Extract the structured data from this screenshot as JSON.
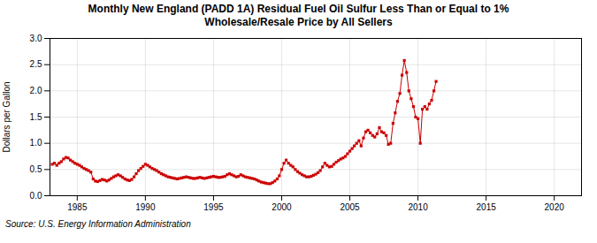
{
  "chart_data": {
    "type": "line",
    "title": "Monthly New England (PADD 1A) Residual Fuel Oil Sulfur Less Than or Equal to 1%\nWholesale/Resale Price by All Sellers",
    "ylabel": "Dollars per Gallon",
    "source": "Source: U.S. Energy Information Administration",
    "color": "#cc0000",
    "marker": "square",
    "grid": true,
    "xlim": [
      1983,
      2022
    ],
    "ylim": [
      0.0,
      3.0
    ],
    "xticks": [
      1985,
      1990,
      1995,
      2000,
      2005,
      2010,
      2015,
      2020
    ],
    "yticks": [
      {
        "value": 0.0,
        "label": "0.0"
      },
      0.5,
      {
        "value": 1.0,
        "label": "1.0"
      },
      1.5,
      {
        "value": 2.0,
        "label": "2.0"
      },
      2.5,
      {
        "value": 3.0,
        "label": "3.0"
      }
    ],
    "x": [
      1983.17,
      1983.33,
      1983.5,
      1983.67,
      1983.83,
      1984.0,
      1984.17,
      1984.33,
      1984.5,
      1984.67,
      1984.83,
      1985.0,
      1985.17,
      1985.33,
      1985.5,
      1985.67,
      1985.83,
      1986.0,
      1986.17,
      1986.33,
      1986.5,
      1986.67,
      1986.83,
      1987.0,
      1987.17,
      1987.33,
      1987.5,
      1987.67,
      1987.83,
      1988.0,
      1988.17,
      1988.33,
      1988.5,
      1988.67,
      1988.83,
      1989.0,
      1989.17,
      1989.33,
      1989.5,
      1989.67,
      1989.83,
      1990.0,
      1990.17,
      1990.33,
      1990.5,
      1990.67,
      1990.83,
      1991.0,
      1991.17,
      1991.33,
      1991.5,
      1991.67,
      1991.83,
      1992.0,
      1992.17,
      1992.33,
      1992.5,
      1992.67,
      1992.83,
      1993.0,
      1993.17,
      1993.33,
      1993.5,
      1993.67,
      1993.83,
      1994.0,
      1994.17,
      1994.33,
      1994.5,
      1994.67,
      1994.83,
      1995.0,
      1995.17,
      1995.33,
      1995.5,
      1995.67,
      1995.83,
      1996.0,
      1996.17,
      1996.33,
      1996.5,
      1996.67,
      1996.83,
      1997.0,
      1997.17,
      1997.33,
      1997.5,
      1997.67,
      1997.83,
      1998.0,
      1998.17,
      1998.33,
      1998.5,
      1998.67,
      1998.83,
      1999.0,
      1999.17,
      1999.33,
      1999.5,
      1999.67,
      1999.83,
      2000.0,
      2000.17,
      2000.33,
      2000.5,
      2000.67,
      2000.83,
      2001.0,
      2001.17,
      2001.33,
      2001.5,
      2001.67,
      2001.83,
      2002.0,
      2002.17,
      2002.33,
      2002.5,
      2002.67,
      2002.83,
      2003.0,
      2003.17,
      2003.33,
      2003.5,
      2003.67,
      2003.83,
      2004.0,
      2004.17,
      2004.33,
      2004.5,
      2004.67,
      2004.83,
      2005.0,
      2005.17,
      2005.33,
      2005.5,
      2005.67,
      2005.83,
      2006.0,
      2006.17,
      2006.33,
      2006.5,
      2006.67,
      2006.83,
      2007.0,
      2007.17,
      2007.33,
      2007.5,
      2007.67,
      2007.83,
      2008.0,
      2008.17,
      2008.33,
      2008.5,
      2008.67,
      2008.83,
      2009.0,
      2009.17,
      2009.33,
      2009.5,
      2009.67,
      2009.83,
      2010.0,
      2010.17,
      2010.33,
      2010.5,
      2010.67,
      2010.83,
      2011.0,
      2011.17,
      2011.33
    ],
    "values": [
      0.6,
      0.62,
      0.58,
      0.62,
      0.65,
      0.7,
      0.73,
      0.72,
      0.68,
      0.65,
      0.62,
      0.6,
      0.58,
      0.55,
      0.52,
      0.5,
      0.48,
      0.45,
      0.32,
      0.28,
      0.27,
      0.29,
      0.31,
      0.3,
      0.28,
      0.3,
      0.33,
      0.36,
      0.38,
      0.4,
      0.38,
      0.35,
      0.32,
      0.3,
      0.29,
      0.31,
      0.36,
      0.42,
      0.48,
      0.52,
      0.56,
      0.6,
      0.58,
      0.55,
      0.52,
      0.5,
      0.48,
      0.45,
      0.42,
      0.4,
      0.38,
      0.36,
      0.35,
      0.34,
      0.33,
      0.32,
      0.33,
      0.34,
      0.35,
      0.36,
      0.35,
      0.34,
      0.33,
      0.33,
      0.34,
      0.35,
      0.34,
      0.33,
      0.34,
      0.35,
      0.36,
      0.37,
      0.36,
      0.35,
      0.35,
      0.36,
      0.37,
      0.4,
      0.42,
      0.4,
      0.38,
      0.36,
      0.37,
      0.4,
      0.38,
      0.36,
      0.35,
      0.34,
      0.33,
      0.32,
      0.3,
      0.28,
      0.26,
      0.25,
      0.24,
      0.23,
      0.23,
      0.25,
      0.28,
      0.32,
      0.38,
      0.5,
      0.62,
      0.68,
      0.62,
      0.58,
      0.55,
      0.5,
      0.46,
      0.43,
      0.4,
      0.38,
      0.36,
      0.36,
      0.37,
      0.39,
      0.41,
      0.44,
      0.48,
      0.55,
      0.62,
      0.58,
      0.55,
      0.56,
      0.6,
      0.64,
      0.67,
      0.7,
      0.72,
      0.75,
      0.8,
      0.85,
      0.9,
      0.95,
      1.0,
      1.05,
      0.95,
      1.1,
      1.22,
      1.25,
      1.2,
      1.15,
      1.12,
      1.18,
      1.3,
      1.22,
      1.2,
      1.15,
      0.98,
      1.0,
      1.38,
      1.58,
      1.8,
      1.95,
      2.3,
      2.58,
      2.35,
      2.0,
      1.85,
      1.7,
      1.5,
      1.47,
      1.0,
      1.65,
      1.7,
      1.65,
      1.75,
      1.82,
      2.0,
      2.18
    ]
  }
}
